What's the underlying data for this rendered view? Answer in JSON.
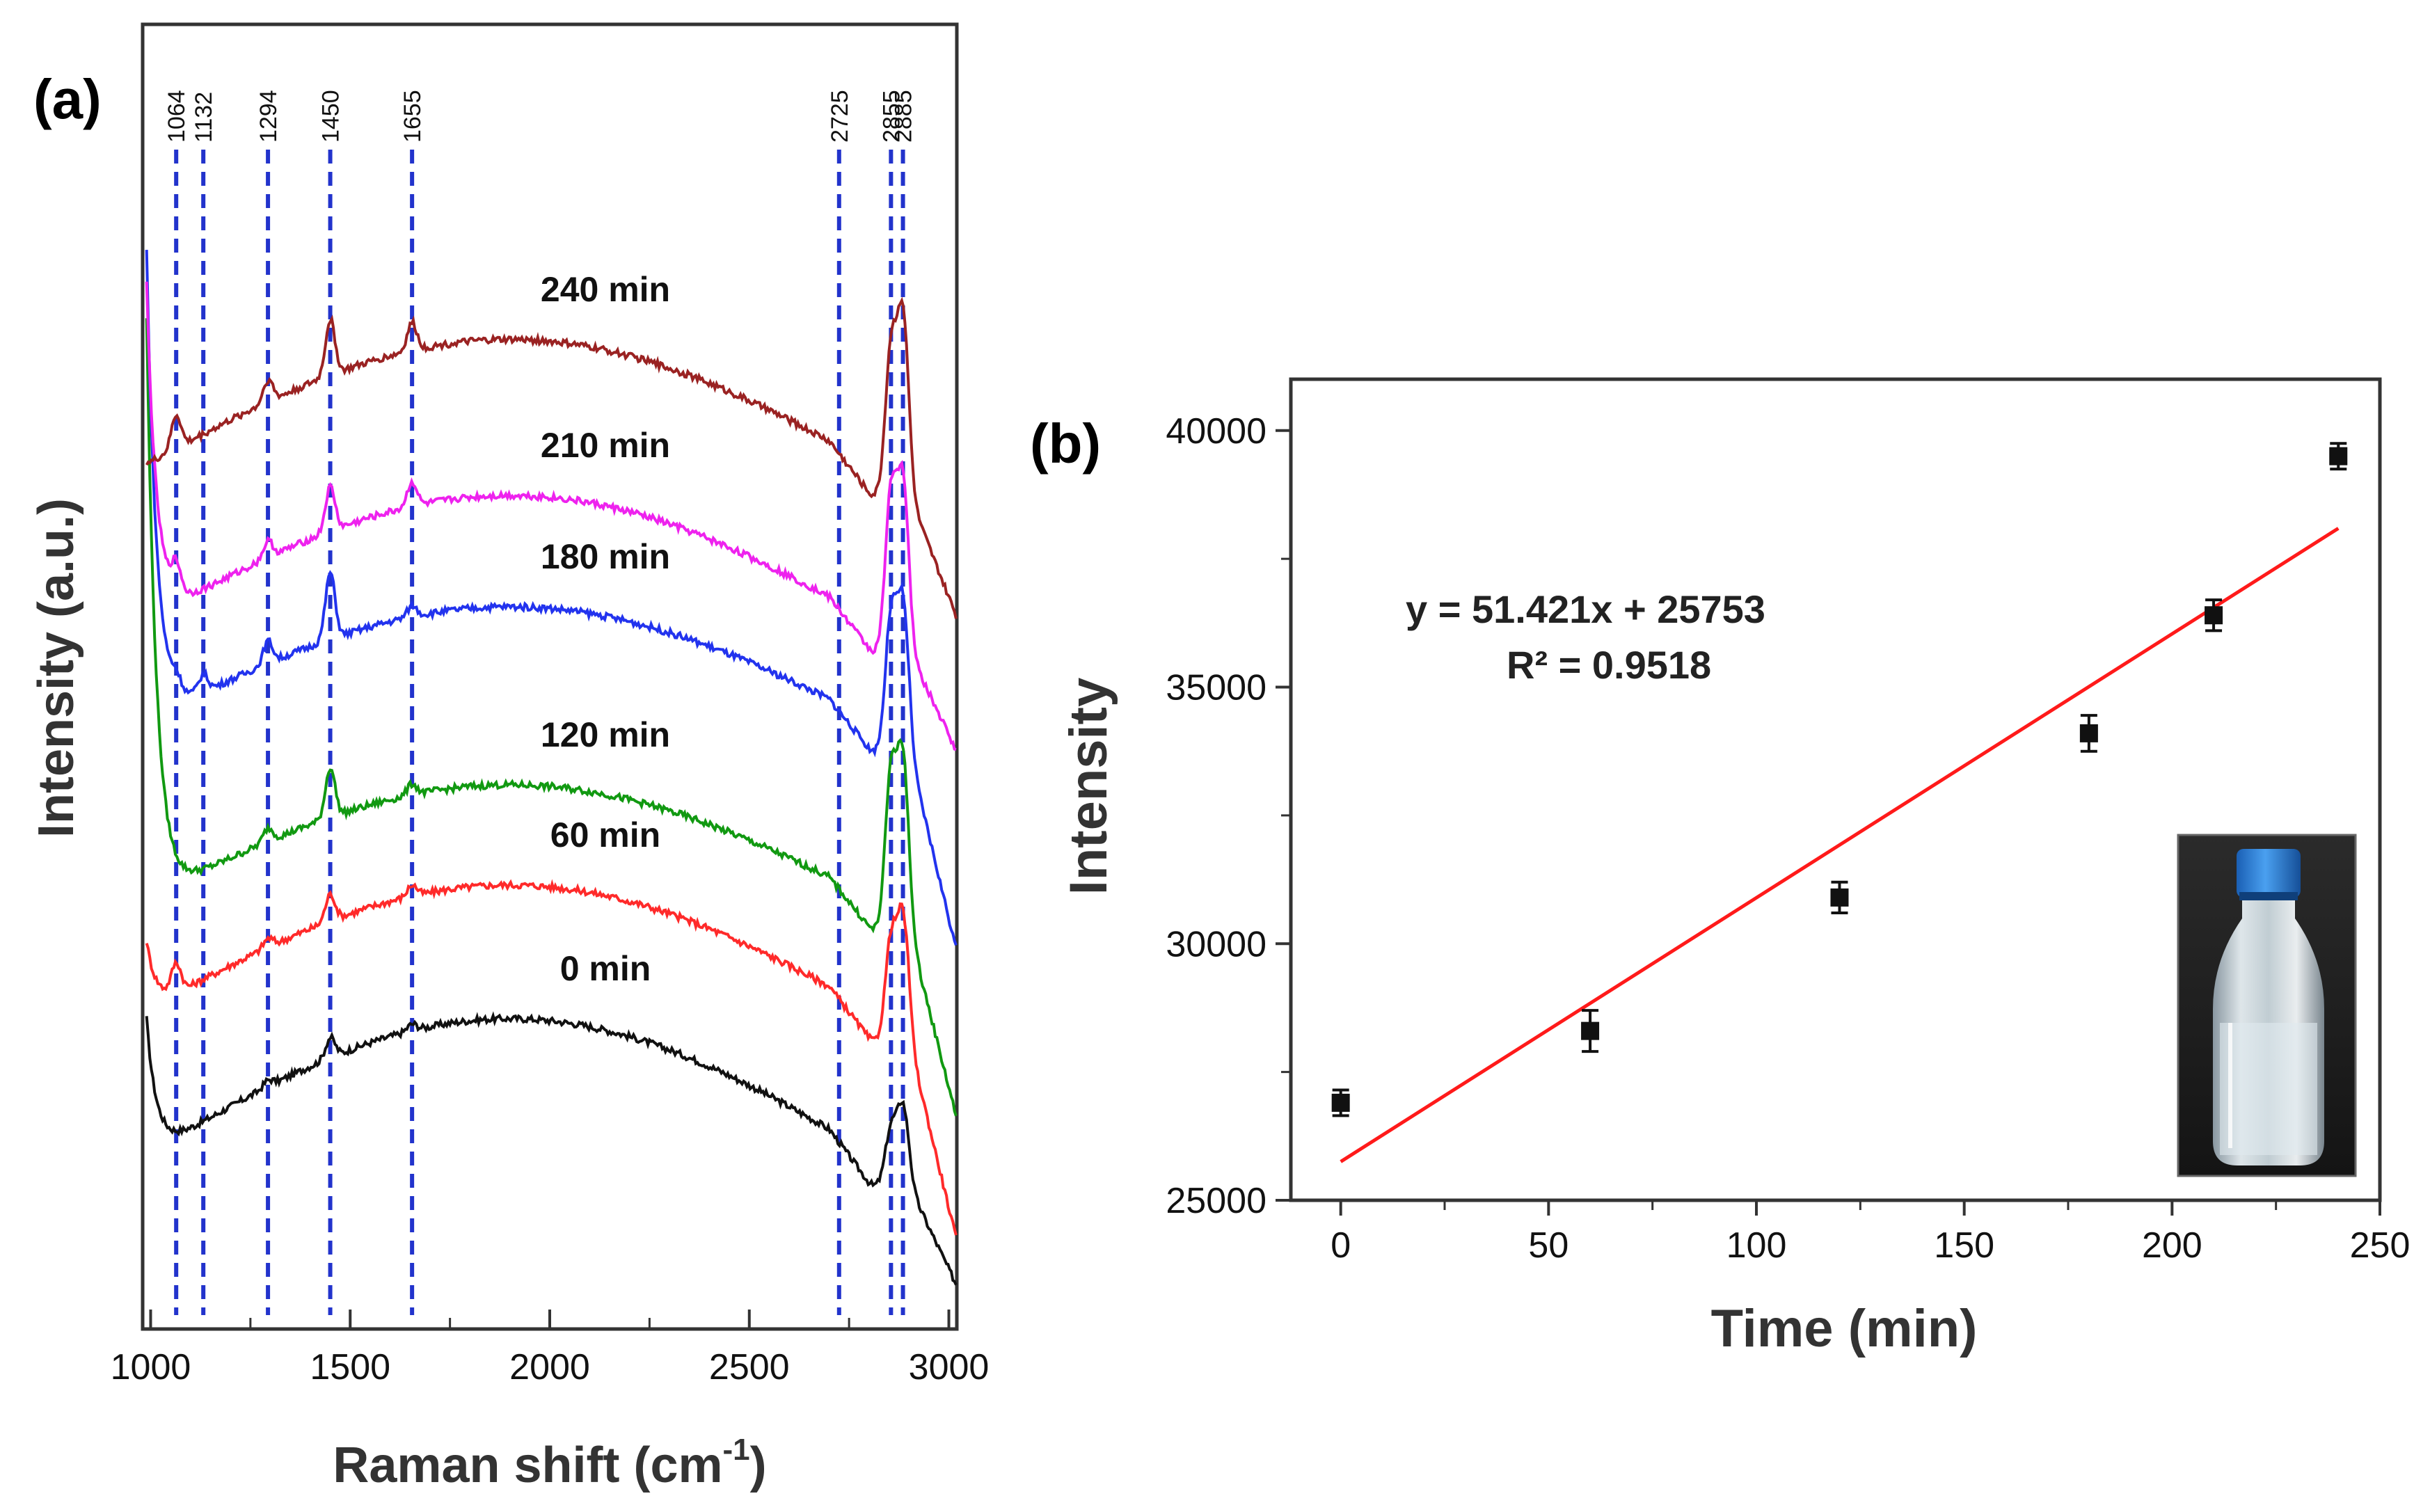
{
  "panel_a": {
    "label": "(a)",
    "chart_data": {
      "type": "line",
      "title": "",
      "xlabel": "Raman shift (cm",
      "xlabel_sup": "-1",
      "xlabel_close": ")",
      "ylabel": "Intensity (a.u.)",
      "xlim": [
        980,
        3020
      ],
      "ylim": [
        0,
        1
      ],
      "x_ticks": [
        1000,
        1500,
        2000,
        2500,
        3000
      ],
      "x_tick_labels": [
        "1000",
        "1500",
        "2000",
        "2500",
        "3000"
      ],
      "grid": false,
      "peak_positions": [
        1064,
        1132,
        1294,
        1450,
        1655,
        2725,
        2855,
        2885
      ],
      "peak_labels": [
        "1064",
        "1132",
        "1294",
        "1450",
        "1655",
        "2725",
        "2855",
        "2885"
      ],
      "peak_line_color": "#2233cc",
      "series": [
        {
          "name": "0 min",
          "label": "0 min",
          "color": "#111111",
          "offset": 0.14,
          "bump": 0.12,
          "peaks": [
            [
              1064,
              0.0
            ],
            [
              1294,
              0.006
            ],
            [
              1450,
              0.018
            ],
            [
              1655,
              0.006
            ],
            [
              2855,
              0.05
            ],
            [
              2885,
              0.07
            ]
          ],
          "start_drop": 0.12,
          "end_value": 0.0
        },
        {
          "name": "60 min",
          "label": "60 min",
          "color": "#ff2a2a",
          "offset": 0.27,
          "bump": 0.11,
          "peaks": [
            [
              1064,
              0.025
            ],
            [
              1294,
              0.008
            ],
            [
              1450,
              0.024
            ],
            [
              1655,
              0.01
            ],
            [
              2855,
              0.09
            ],
            [
              2885,
              0.11
            ]
          ],
          "start_drop": 0.06,
          "end_value": 0.04
        },
        {
          "name": "120 min",
          "label": "120 min",
          "color": "#119911",
          "offset": 0.37,
          "bump": 0.1,
          "peaks": [
            [
              1064,
              0.0
            ],
            [
              1294,
              0.012
            ],
            [
              1450,
              0.045
            ],
            [
              1655,
              0.01
            ],
            [
              2855,
              0.14
            ],
            [
              2885,
              0.15
            ]
          ],
          "start_drop": 0.52,
          "end_value": 0.15
        },
        {
          "name": "180 min",
          "label": "180 min",
          "color": "#2233ee",
          "offset": 0.53,
          "bump": 0.1,
          "peaks": [
            [
              1064,
              0.012
            ],
            [
              1132,
              0.015
            ],
            [
              1294,
              0.02
            ],
            [
              1450,
              0.06
            ],
            [
              1655,
              0.01
            ],
            [
              2855,
              0.12
            ],
            [
              2885,
              0.13
            ]
          ],
          "start_drop": 0.42,
          "end_value": 0.3
        },
        {
          "name": "210 min",
          "label": "210 min",
          "color": "#ee22ee",
          "offset": 0.62,
          "bump": 0.11,
          "peaks": [
            [
              1064,
              0.025
            ],
            [
              1294,
              0.015
            ],
            [
              1450,
              0.04
            ],
            [
              1655,
              0.022
            ],
            [
              2855,
              0.14
            ],
            [
              2885,
              0.15
            ]
          ],
          "start_drop": 0.3,
          "end_value": 0.48
        },
        {
          "name": "240 min",
          "label": "240 min",
          "color": "#9a2222",
          "offset": 0.76,
          "bump": 0.11,
          "peaks": [
            [
              1064,
              0.03
            ],
            [
              1132,
              0.0
            ],
            [
              1294,
              0.02
            ],
            [
              1450,
              0.05
            ],
            [
              1655,
              0.025
            ],
            [
              2855,
              0.13
            ],
            [
              2885,
              0.16
            ]
          ],
          "start_drop": 0.0,
          "end_value": 0.6
        }
      ]
    }
  },
  "panel_b": {
    "label": "(b)",
    "chart_data": {
      "type": "scatter",
      "title": "",
      "xlabel": "Time (min)",
      "ylabel": "Intensity",
      "xlim": [
        -12,
        250
      ],
      "ylim": [
        25000,
        41000
      ],
      "x_ticks": [
        0,
        50,
        100,
        150,
        200,
        250
      ],
      "x_tick_labels": [
        "0",
        "50",
        "100",
        "150",
        "200",
        "250"
      ],
      "y_ticks": [
        25000,
        30000,
        35000,
        40000
      ],
      "y_tick_labels": [
        "25000",
        "30000",
        "35000",
        "40000"
      ],
      "grid": false,
      "points": {
        "x": [
          0,
          60,
          120,
          180,
          210,
          240
        ],
        "y": [
          26900,
          28300,
          30900,
          34100,
          36400,
          39500
        ],
        "error": [
          250,
          400,
          300,
          350,
          300,
          250
        ],
        "color": "#111111"
      },
      "fit": {
        "slope": 51.421,
        "intercept": 25753,
        "x_range": [
          0,
          240
        ],
        "color": "#ff1a1a",
        "equation": "y = 51.421x + 25753",
        "r_squared": "R² = 0.9518"
      },
      "inset": "photo of a clear bottle with blue cap"
    }
  },
  "colors": {
    "axis": "#333333",
    "bottle_cap": "#2a7bd8",
    "inset_bg": "#1c1c1c"
  }
}
